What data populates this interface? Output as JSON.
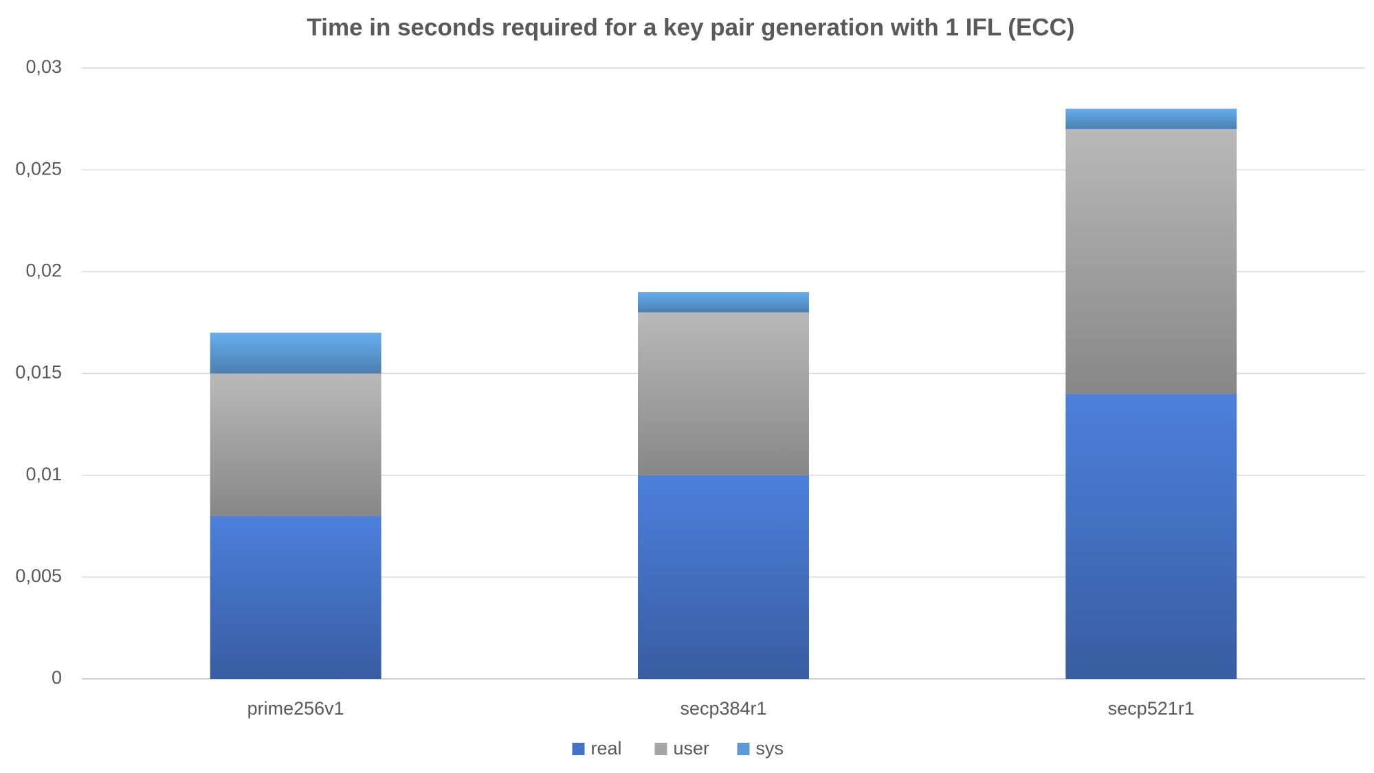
{
  "chart_data": {
    "type": "stacked_bar",
    "title": "Time in seconds required for a key pair generation with 1 IFL (ECC)",
    "categories": [
      "prime256v1",
      "secp384r1",
      "secp521r1"
    ],
    "series": [
      {
        "name": "real",
        "color": "#4472c4",
        "values": [
          0.008,
          0.01,
          0.014
        ]
      },
      {
        "name": "user",
        "color": "#a5a5a5",
        "values": [
          0.007,
          0.008,
          0.013
        ]
      },
      {
        "name": "sys",
        "color": "#5b9bd5",
        "values": [
          0.002,
          0.001,
          0.001
        ]
      }
    ],
    "ylim": [
      0,
      0.03
    ],
    "yticks": [
      0,
      {
        "value": 0.005,
        "label": "0,005"
      },
      {
        "value": 0.01,
        "label": "0,01"
      },
      {
        "value": 0.015,
        "label": "0,015"
      },
      {
        "value": 0.02,
        "label": "0,02"
      },
      {
        "value": 0.025,
        "label": "0,025"
      },
      {
        "value": 0.03,
        "label": "0,03"
      }
    ],
    "grid": true,
    "legend": "bottom"
  }
}
